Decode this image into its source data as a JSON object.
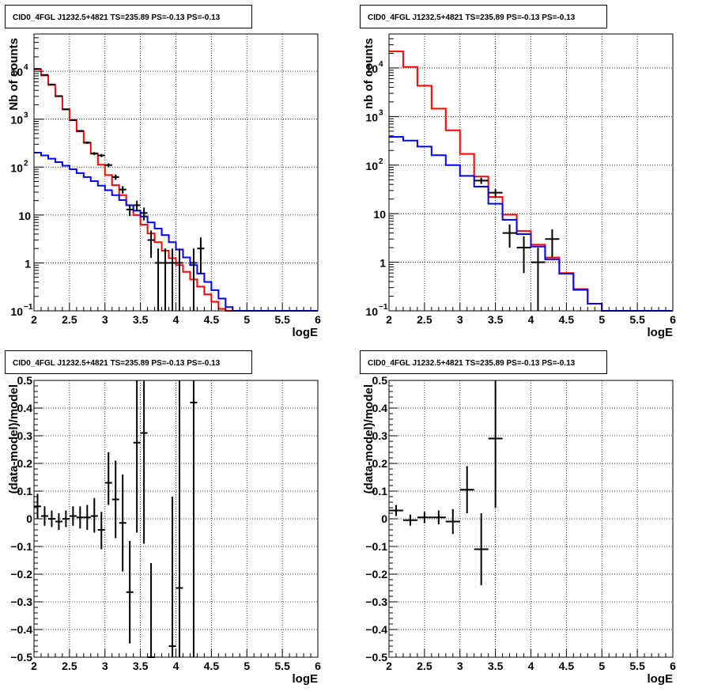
{
  "chart_data": [
    {
      "type": "line",
      "title": "CID0_4FGL J1232.5+4821 TS=235.89 PS=-0.13 PS=-0.13",
      "xlabel": "logE",
      "ylabel": "Nb of counts",
      "xlim": [
        2,
        6
      ],
      "ylim": [
        0.1,
        60000
      ],
      "yscale": "log",
      "grid": true,
      "x_tick_labels": [
        "2",
        "2.5",
        "3",
        "3.5",
        "4",
        "4.5",
        "5",
        "5.5",
        "6"
      ],
      "y_tick_labels": [
        {
          "value": 0.1,
          "label": "10",
          "sup": "−1"
        },
        {
          "value": 1,
          "label": "1",
          "sup": ""
        },
        {
          "value": 10,
          "label": "10",
          "sup": ""
        },
        {
          "value": 100,
          "label": "10",
          "sup": "2"
        },
        {
          "value": 1000,
          "label": "10",
          "sup": "3"
        },
        {
          "value": 10000,
          "label": "10",
          "sup": "4"
        }
      ],
      "bin_edges": [
        2.0,
        2.1,
        2.2,
        2.3,
        2.4,
        2.5,
        2.6,
        2.7,
        2.8,
        2.9,
        3.0,
        3.1,
        3.2,
        3.3,
        3.4,
        3.5,
        3.6,
        3.7,
        3.8,
        3.9,
        4.0,
        4.1,
        4.2,
        4.3,
        4.4,
        4.5,
        4.6,
        4.7,
        4.8,
        4.9,
        5.0,
        5.1,
        5.2,
        5.3,
        5.4,
        5.5,
        5.6,
        5.7,
        5.8,
        5.9,
        6.0
      ],
      "series": [
        {
          "color": "#ff0000",
          "style": "step",
          "values": [
            11000,
            8200,
            5200,
            3000,
            1600,
            950,
            560,
            320,
            190,
            112,
            68,
            42,
            26,
            16,
            10,
            6.3,
            4.1,
            2.7,
            1.8,
            1.25,
            0.9,
            0.65,
            0.45,
            0.32,
            0.22,
            0.155,
            0.11,
            0.1,
            0.1,
            0.1,
            0.1,
            0.1,
            0.1,
            0.1,
            0.1,
            0.1,
            0.1,
            0.1,
            0.1,
            0.1
          ]
        },
        {
          "color": "#0000ff",
          "style": "step",
          "values": [
            200,
            175,
            150,
            127,
            107,
            90,
            75,
            62,
            51,
            41,
            33,
            26,
            20.5,
            16,
            12.3,
            9.3,
            7.0,
            5.2,
            3.8,
            2.7,
            1.9,
            1.3,
            0.9,
            0.6,
            0.4,
            0.27,
            0.18,
            0.12,
            0.1,
            0.1,
            0.1,
            0.1,
            0.1,
            0.1,
            0.1,
            0.1,
            0.1,
            0.1,
            0.1,
            0.1
          ]
        },
        {
          "color": "#000000",
          "style": "errorbar",
          "points": [
            {
              "x": 2.05,
              "y": 11200,
              "lo": 11100,
              "hi": 11300,
              "xerr": 0.05
            },
            {
              "x": 2.15,
              "y": 8400,
              "lo": 8320,
              "hi": 8480,
              "xerr": 0.05
            },
            {
              "x": 2.25,
              "y": 5300,
              "lo": 5230,
              "hi": 5370,
              "xerr": 0.05
            },
            {
              "x": 2.35,
              "y": 3040,
              "lo": 2990,
              "hi": 3090,
              "xerr": 0.05
            },
            {
              "x": 2.45,
              "y": 1610,
              "lo": 1570,
              "hi": 1650,
              "xerr": 0.05
            },
            {
              "x": 2.55,
              "y": 960,
              "lo": 930,
              "hi": 990,
              "xerr": 0.05
            },
            {
              "x": 2.65,
              "y": 570,
              "lo": 546,
              "hi": 594,
              "xerr": 0.05
            },
            {
              "x": 2.75,
              "y": 325,
              "lo": 307,
              "hi": 343,
              "xerr": 0.05
            },
            {
              "x": 2.85,
              "y": 192,
              "lo": 178,
              "hi": 206,
              "xerr": 0.05
            },
            {
              "x": 2.95,
              "y": 175,
              "lo": 162,
              "hi": 188,
              "xerr": 0.05
            },
            {
              "x": 3.05,
              "y": 110,
              "lo": 100,
              "hi": 120,
              "xerr": 0.05
            },
            {
              "x": 3.15,
              "y": 62,
              "lo": 54,
              "hi": 70,
              "xerr": 0.05
            },
            {
              "x": 3.25,
              "y": 34,
              "lo": 28,
              "hi": 40,
              "xerr": 0.05
            },
            {
              "x": 3.35,
              "y": 13,
              "lo": 9.5,
              "hi": 16.6,
              "xerr": 0.05
            },
            {
              "x": 3.45,
              "y": 16,
              "lo": 12,
              "hi": 20,
              "xerr": 0.05
            },
            {
              "x": 3.55,
              "y": 11,
              "lo": 7.7,
              "hi": 14.3,
              "xerr": 0.05
            },
            {
              "x": 3.65,
              "y": 3,
              "lo": 1.27,
              "hi": 4.73,
              "xerr": 0.05
            },
            {
              "x": 3.75,
              "y": 1,
              "lo": 0.1,
              "hi": 2,
              "xerr": 0.05
            },
            {
              "x": 3.85,
              "y": 1,
              "lo": 0.1,
              "hi": 2,
              "xerr": 0.05
            },
            {
              "x": 3.95,
              "y": 1,
              "lo": 0.1,
              "hi": 2,
              "xerr": 0.05
            },
            {
              "x": 4.05,
              "y": 1,
              "lo": 0.1,
              "hi": 2,
              "xerr": 0.05
            },
            {
              "x": 4.25,
              "y": 1,
              "lo": 0.1,
              "hi": 2,
              "xerr": 0.05
            },
            {
              "x": 4.35,
              "y": 2,
              "lo": 0.6,
              "hi": 3.4,
              "xerr": 0.05
            }
          ]
        }
      ]
    },
    {
      "type": "line",
      "title": "CID0_4FGL J1232.5+4821 TS=235.89 PS=-0.13 PS=-0.13",
      "xlabel": "logE",
      "ylabel": "nb of counts",
      "xlim": [
        2,
        6
      ],
      "ylim": [
        0.1,
        50000
      ],
      "yscale": "log",
      "grid": true,
      "x_tick_labels": [
        "2",
        "2.5",
        "3",
        "3.5",
        "4",
        "4.5",
        "5",
        "5.5",
        "6"
      ],
      "y_tick_labels": [
        {
          "value": 0.1,
          "label": "10",
          "sup": "−1"
        },
        {
          "value": 1,
          "label": "1",
          "sup": ""
        },
        {
          "value": 10,
          "label": "10",
          "sup": ""
        },
        {
          "value": 100,
          "label": "10",
          "sup": "2"
        },
        {
          "value": 1000,
          "label": "10",
          "sup": "3"
        },
        {
          "value": 10000,
          "label": "10",
          "sup": "4"
        }
      ],
      "bin_edges": [
        2.0,
        2.2,
        2.4,
        2.6,
        2.8,
        3.0,
        3.2,
        3.4,
        3.6,
        3.8,
        4.0,
        4.2,
        4.4,
        4.6,
        4.8,
        5.0,
        5.2,
        5.4,
        5.6,
        5.8,
        6.0
      ],
      "series": [
        {
          "color": "#ff0000",
          "style": "step",
          "values": [
            22000,
            10500,
            4300,
            1450,
            520,
            170,
            58,
            22,
            9.5,
            4.4,
            2.3,
            1.25,
            0.6,
            0.28,
            0.14,
            0.1,
            0.1,
            0.1,
            0.1,
            0.1
          ]
        },
        {
          "color": "#0000ff",
          "style": "step",
          "values": [
            380,
            320,
            240,
            160,
            100,
            60,
            36,
            16,
            7.5,
            3.8,
            2.1,
            1.15,
            0.58,
            0.27,
            0.14,
            0.1,
            0.1,
            0.1,
            0.1,
            0.1
          ]
        },
        {
          "color": "#000000",
          "style": "errorbar",
          "points": [
            {
              "x": 3.3,
              "y": 48,
              "lo": 41,
              "hi": 55,
              "xerr": 0.1
            },
            {
              "x": 3.5,
              "y": 27,
              "lo": 22,
              "hi": 32,
              "xerr": 0.1
            },
            {
              "x": 3.7,
              "y": 4,
              "lo": 2,
              "hi": 6,
              "xerr": 0.1
            },
            {
              "x": 3.9,
              "y": 2,
              "lo": 0.6,
              "hi": 3.4,
              "xerr": 0.1
            },
            {
              "x": 4.1,
              "y": 1,
              "lo": 0.1,
              "hi": 2,
              "xerr": 0.1
            },
            {
              "x": 4.3,
              "y": 3,
              "lo": 1.27,
              "hi": 4.73,
              "xerr": 0.1
            }
          ]
        }
      ]
    },
    {
      "type": "scatter",
      "title": "CID0_4FGL J1232.5+4821 TS=235.89 PS=-0.13 PS=-0.13",
      "xlabel": "logE",
      "ylabel": "(data-model)/model",
      "xlim": [
        2,
        6
      ],
      "ylim": [
        -0.5,
        0.5
      ],
      "grid": true,
      "x_tick_labels": [
        "2",
        "2.5",
        "3",
        "3.5",
        "4",
        "4.5",
        "5",
        "5.5",
        "6"
      ],
      "y_tick_labels": [
        "−0.5",
        "−0.4",
        "−0.3",
        "−0.2",
        "−0.1",
        "0",
        "0.1",
        "0.2",
        "0.3",
        "0.4",
        "0.5"
      ],
      "series": [
        {
          "color": "#000000",
          "style": "errorbar",
          "points": [
            {
              "x": 2.05,
              "y": 0.045,
              "lo": 0.0,
              "hi": 0.09,
              "xerr": 0.05
            },
            {
              "x": 2.15,
              "y": 0.01,
              "lo": -0.025,
              "hi": 0.045,
              "xerr": 0.05
            },
            {
              "x": 2.25,
              "y": 0.0,
              "lo": -0.03,
              "hi": 0.03,
              "xerr": 0.05
            },
            {
              "x": 2.35,
              "y": -0.01,
              "lo": -0.04,
              "hi": 0.02,
              "xerr": 0.05
            },
            {
              "x": 2.45,
              "y": 0.0,
              "lo": -0.03,
              "hi": 0.03,
              "xerr": 0.05
            },
            {
              "x": 2.55,
              "y": 0.01,
              "lo": -0.025,
              "hi": 0.045,
              "xerr": 0.05
            },
            {
              "x": 2.65,
              "y": 0.005,
              "lo": -0.035,
              "hi": 0.045,
              "xerr": 0.05
            },
            {
              "x": 2.75,
              "y": 0.005,
              "lo": -0.04,
              "hi": 0.05,
              "xerr": 0.05
            },
            {
              "x": 2.85,
              "y": 0.01,
              "lo": -0.05,
              "hi": 0.075,
              "xerr": 0.05
            },
            {
              "x": 2.95,
              "y": -0.04,
              "lo": -0.11,
              "hi": 0.025,
              "xerr": 0.05
            },
            {
              "x": 3.05,
              "y": 0.13,
              "lo": 0.05,
              "hi": 0.24,
              "xerr": 0.05
            },
            {
              "x": 3.15,
              "y": 0.07,
              "lo": -0.07,
              "hi": 0.21,
              "xerr": 0.05
            },
            {
              "x": 3.25,
              "y": -0.015,
              "lo": -0.19,
              "hi": 0.16,
              "xerr": 0.05
            },
            {
              "x": 3.35,
              "y": -0.265,
              "lo": -0.45,
              "hi": -0.08,
              "xerr": 0.05
            },
            {
              "x": 3.45,
              "y": 0.275,
              "lo": -0.05,
              "hi": 0.5,
              "xerr": 0.05
            },
            {
              "x": 3.55,
              "y": 0.31,
              "lo": -0.09,
              "hi": 0.5,
              "xerr": 0.05
            },
            {
              "x": 3.65,
              "y": -0.5,
              "lo": -0.5,
              "hi": -0.16,
              "xerr": 0.05
            },
            {
              "x": 3.95,
              "y": -0.46,
              "lo": -0.5,
              "hi": 0.08,
              "xerr": 0.05
            },
            {
              "x": 4.05,
              "y": -0.25,
              "lo": -0.5,
              "hi": 0.5,
              "xerr": 0.05
            },
            {
              "x": 4.25,
              "y": 0.42,
              "lo": -0.5,
              "hi": 0.5,
              "xerr": 0.05
            }
          ]
        }
      ]
    },
    {
      "type": "scatter",
      "title": "CID0_4FGL J1232.5+4821 TS=235.89 PS=-0.13 PS=-0.13",
      "xlabel": "logE",
      "ylabel": "(data-model)/model",
      "xlim": [
        2,
        6
      ],
      "ylim": [
        -0.5,
        0.5
      ],
      "grid": true,
      "x_tick_labels": [
        "2",
        "2.5",
        "3",
        "3.5",
        "4",
        "4.5",
        "5",
        "5.5",
        "6"
      ],
      "y_tick_labels": [
        "−0.5",
        "−0.4",
        "−0.3",
        "−0.2",
        "−0.1",
        "0",
        "0.1",
        "0.2",
        "0.3",
        "0.4",
        "0.5"
      ],
      "series": [
        {
          "color": "#000000",
          "style": "errorbar",
          "points": [
            {
              "x": 2.1,
              "y": 0.03,
              "lo": 0.01,
              "hi": 0.05,
              "xerr": 0.1
            },
            {
              "x": 2.3,
              "y": -0.005,
              "lo": -0.025,
              "hi": 0.015,
              "xerr": 0.1
            },
            {
              "x": 2.5,
              "y": 0.005,
              "lo": -0.015,
              "hi": 0.025,
              "xerr": 0.1
            },
            {
              "x": 2.7,
              "y": 0.005,
              "lo": -0.02,
              "hi": 0.03,
              "xerr": 0.1
            },
            {
              "x": 2.9,
              "y": -0.01,
              "lo": -0.055,
              "hi": 0.035,
              "xerr": 0.1
            },
            {
              "x": 3.1,
              "y": 0.105,
              "lo": 0.02,
              "hi": 0.19,
              "xerr": 0.1
            },
            {
              "x": 3.3,
              "y": -0.11,
              "lo": -0.24,
              "hi": 0.02,
              "xerr": 0.1
            },
            {
              "x": 3.5,
              "y": 0.29,
              "lo": 0.04,
              "hi": 0.5,
              "xerr": 0.1
            }
          ]
        }
      ]
    }
  ]
}
